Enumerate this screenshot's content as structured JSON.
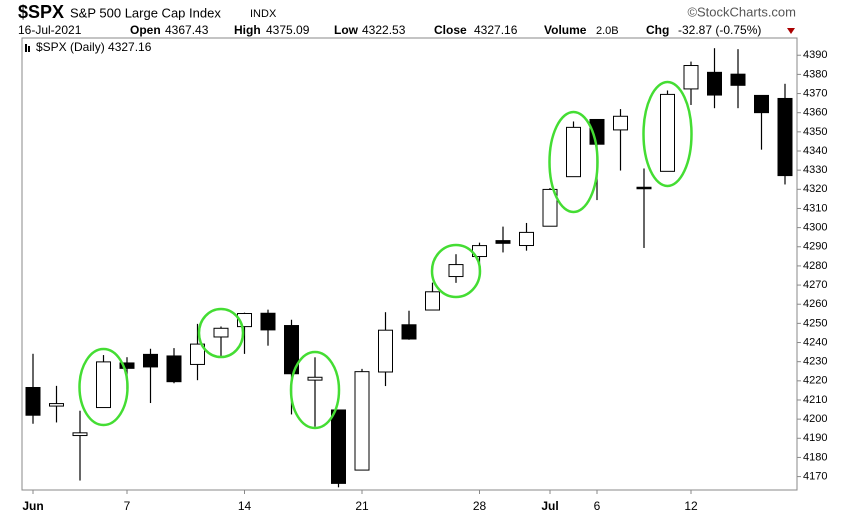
{
  "header": {
    "symbol": "$SPX",
    "name": "S&P 500 Large Cap Index",
    "exchange": "INDX",
    "source": "©StockCharts.com",
    "date": "16-Jul-2021",
    "open_label": "Open",
    "open": "4367.43",
    "high_label": "High",
    "high": "4375.09",
    "low_label": "Low",
    "low": "4322.53",
    "close_label": "Close",
    "close": "4327.16",
    "volume_label": "Volume",
    "volume": "2.0B",
    "chg_label": "Chg",
    "chg": "-32.87 (-0.75%)",
    "legend": "$SPX (Daily) 4327.16"
  },
  "chart_data": {
    "type": "candlestick",
    "categories": [
      "Jun",
      null,
      null,
      null,
      "7",
      null,
      null,
      null,
      null,
      "14",
      null,
      null,
      null,
      null,
      "21",
      null,
      null,
      null,
      null,
      "28",
      null,
      null,
      "Jul",
      null,
      "6",
      null,
      null,
      null,
      "12",
      null,
      null,
      null,
      null
    ],
    "open": [
      4216.52,
      4206.82,
      4191.43,
      4206.05,
      4229.34,
      4233.81,
      4232.99,
      4228.56,
      4242.9,
      4248.31,
      4255.28,
      4248.87,
      4220.37,
      4204.78,
      4173.4,
      4224.61,
      4249.27,
      4256.97,
      4274.45,
      4284.9,
      4293.21,
      4290.65,
      4300.73,
      4326.6,
      4356.46,
      4351.01,
      4321.07,
      4329.38,
      4372.41,
      4381.07,
      4380.11,
      4369.02,
      4367.43
    ],
    "high": [
      4234.12,
      4217.37,
      4204.39,
      4233.45,
      4232.34,
      4236.74,
      4237.09,
      4249.74,
      4248.38,
      4255.59,
      4257.16,
      4251.89,
      4232.29,
      4204.78,
      4226.24,
      4255.84,
      4256.6,
      4271.28,
      4286.12,
      4292.14,
      4300.52,
      4302.43,
      4320.66,
      4355.43,
      4356.46,
      4361.88,
      4330.88,
      4371.6,
      4386.68,
      4393.68,
      4393.18,
      4369.02,
      4375.09
    ],
    "low": [
      4197.59,
      4198.27,
      4167.93,
      4206.05,
      4215.66,
      4208.41,
      4218.74,
      4220.34,
      4232.25,
      4234.07,
      4238.35,
      4202.45,
      4196.05,
      4164.4,
      4173.4,
      4217.27,
      4241.43,
      4256.97,
      4271.16,
      4274.67,
      4287.04,
      4287.96,
      4300.73,
      4326.6,
      4314.37,
      4329.79,
      4289.37,
      4329.38,
      4364.03,
      4362.36,
      4362.36,
      4340.7,
      4322.53
    ],
    "close": [
      4202.04,
      4208.12,
      4192.85,
      4229.89,
      4226.52,
      4227.26,
      4219.55,
      4239.18,
      4247.44,
      4255.15,
      4246.59,
      4223.7,
      4221.86,
      4166.45,
      4224.79,
      4246.44,
      4241.84,
      4266.49,
      4280.7,
      4290.61,
      4291.8,
      4297.5,
      4319.94,
      4352.34,
      4343.54,
      4358.13,
      4320.82,
      4369.55,
      4384.63,
      4369.21,
      4374.3,
      4360.03,
      4327.16
    ],
    "ylim": [
      4163,
      4399
    ],
    "yticks": [
      4170,
      4180,
      4190,
      4200,
      4210,
      4220,
      4230,
      4240,
      4250,
      4260,
      4270,
      4280,
      4290,
      4300,
      4310,
      4320,
      4330,
      4340,
      4350,
      4360,
      4370,
      4380,
      4390
    ],
    "grid": false
  }
}
